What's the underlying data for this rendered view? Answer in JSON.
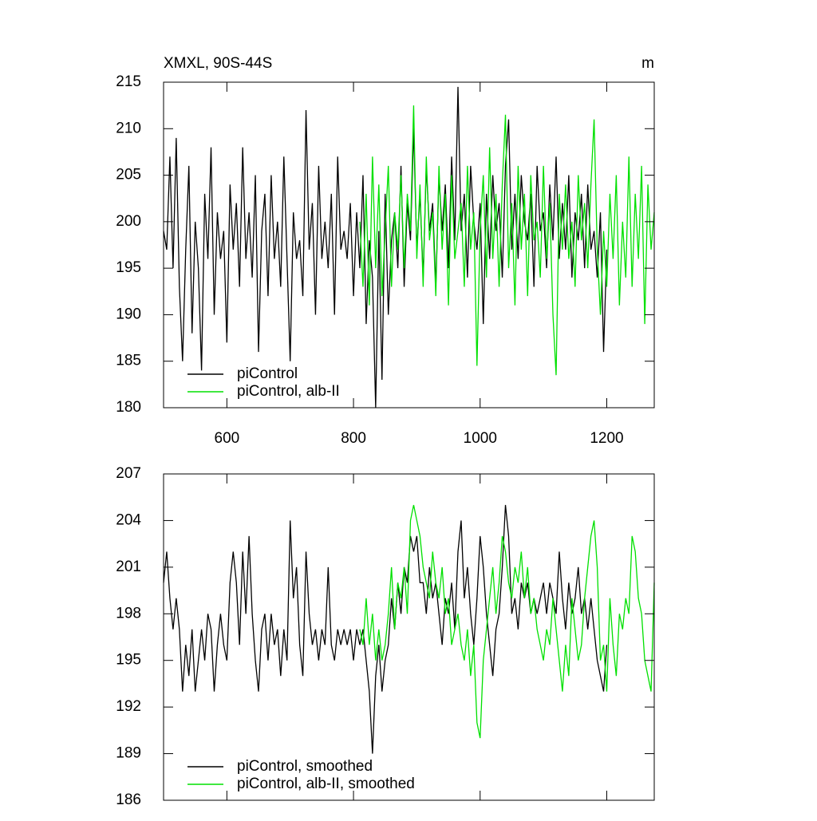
{
  "chart_data": [
    {
      "type": "line",
      "title": "XMXL, 90S-44S",
      "units": "m",
      "xlim": [
        500,
        1275
      ],
      "xticks": [
        600,
        800,
        1000,
        1200
      ],
      "ylim": [
        180,
        215
      ],
      "yticks": [
        180,
        185,
        190,
        195,
        200,
        205,
        210,
        215
      ],
      "legend": "lower left",
      "series": [
        {
          "name": "piControl",
          "color": "#000000",
          "x": [
            500,
            505,
            510,
            515,
            520,
            525,
            530,
            535,
            540,
            545,
            550,
            555,
            560,
            565,
            570,
            575,
            580,
            585,
            590,
            595,
            600,
            605,
            610,
            615,
            620,
            625,
            630,
            635,
            640,
            645,
            650,
            655,
            660,
            665,
            670,
            675,
            680,
            685,
            690,
            695,
            700,
            705,
            710,
            715,
            720,
            725,
            730,
            735,
            740,
            745,
            750,
            755,
            760,
            765,
            770,
            775,
            780,
            785,
            790,
            795,
            800,
            805,
            810,
            815,
            820,
            825,
            830,
            835,
            840,
            845,
            850,
            855,
            860,
            865,
            870,
            875,
            880,
            885,
            890,
            895,
            900,
            905,
            910,
            915,
            920,
            925,
            930,
            935,
            940,
            945,
            950,
            955,
            960,
            965,
            970,
            975,
            980,
            985,
            990,
            995,
            1000,
            1005,
            1010,
            1015,
            1020,
            1025,
            1030,
            1035,
            1040,
            1045,
            1050,
            1055,
            1060,
            1065,
            1070,
            1075,
            1080,
            1085,
            1090,
            1095,
            1100,
            1105,
            1110,
            1115,
            1120,
            1125,
            1130,
            1135,
            1140,
            1145,
            1150,
            1155,
            1160,
            1165,
            1170,
            1175,
            1180,
            1185,
            1190,
            1195,
            1200
          ],
          "values": [
            199,
            197,
            207,
            195,
            209,
            193,
            185,
            197,
            206,
            188,
            200,
            195,
            184,
            203,
            196,
            208,
            190,
            201,
            196,
            199,
            187,
            204,
            197,
            202,
            193,
            208,
            196,
            201,
            194,
            205,
            186,
            199,
            203,
            192,
            205,
            196,
            200,
            193,
            207,
            196,
            185,
            201,
            196,
            198,
            192,
            212,
            197,
            202,
            190,
            206,
            196,
            200,
            195,
            203,
            190,
            207,
            197,
            199,
            196,
            202,
            192,
            201,
            195,
            205,
            189,
            198,
            194,
            180,
            199,
            183,
            203,
            190,
            198,
            201,
            195,
            206,
            193,
            202,
            198,
            210,
            197,
            203,
            194,
            206,
            199,
            202,
            193,
            205,
            199,
            204,
            195,
            207,
            198,
            214.5,
            199,
            203,
            194,
            206,
            200,
            197,
            202,
            189,
            203,
            196,
            205,
            199,
            202,
            194,
            206,
            211,
            197,
            203,
            196,
            205,
            200,
            198,
            203,
            193,
            206,
            199,
            201,
            195,
            204,
            198,
            207,
            196,
            202,
            197,
            205,
            194,
            201,
            198,
            203,
            195,
            204,
            197,
            199,
            194,
            201,
            186,
            197
          ]
        },
        {
          "name": "piControl, alb-II",
          "color": "#00e000",
          "x": [
            810,
            815,
            820,
            825,
            830,
            835,
            840,
            845,
            850,
            855,
            860,
            865,
            870,
            875,
            880,
            885,
            890,
            895,
            900,
            905,
            910,
            915,
            920,
            925,
            930,
            935,
            940,
            945,
            950,
            955,
            960,
            965,
            970,
            975,
            980,
            985,
            990,
            995,
            1000,
            1005,
            1010,
            1015,
            1020,
            1025,
            1030,
            1035,
            1040,
            1045,
            1050,
            1055,
            1060,
            1065,
            1070,
            1075,
            1080,
            1085,
            1090,
            1095,
            1100,
            1105,
            1110,
            1115,
            1120,
            1125,
            1130,
            1135,
            1140,
            1145,
            1150,
            1155,
            1160,
            1165,
            1170,
            1175,
            1180,
            1185,
            1190,
            1195,
            1200,
            1205,
            1210,
            1215,
            1220,
            1225,
            1230,
            1235,
            1240,
            1245,
            1250,
            1255,
            1260,
            1265,
            1270,
            1275
          ],
          "values": [
            200,
            193,
            203,
            191,
            207,
            195,
            204,
            192,
            199,
            206,
            193,
            201,
            197,
            205,
            195,
            203,
            199,
            212.5,
            196,
            204,
            193,
            207,
            198,
            201,
            192,
            206,
            197,
            203,
            191,
            205,
            196,
            199,
            202,
            193,
            206,
            197,
            201,
            184.5,
            199,
            205,
            194,
            208,
            196,
            203,
            193,
            204,
            211.5,
            195,
            202,
            191,
            206,
            197,
            203,
            192,
            205,
            198,
            200,
            194,
            206,
            196,
            202,
            190,
            183.5,
            203,
            197,
            204,
            196,
            200,
            193,
            205,
            198,
            202,
            195,
            204,
            211,
            197,
            190,
            199,
            193,
            203,
            196,
            205,
            191,
            200,
            194,
            207,
            193,
            203,
            196,
            206,
            189,
            204,
            197,
            201
          ]
        }
      ]
    },
    {
      "type": "line",
      "xlim": [
        500,
        1275
      ],
      "xticks": [
        600,
        800,
        1000,
        1200
      ],
      "ylim": [
        186,
        207
      ],
      "yticks": [
        186,
        189,
        192,
        195,
        198,
        201,
        204,
        207
      ],
      "legend": "lower left",
      "series": [
        {
          "name": "piControl, smoothed",
          "color": "#000000",
          "x": [
            500,
            505,
            510,
            515,
            520,
            525,
            530,
            535,
            540,
            545,
            550,
            555,
            560,
            565,
            570,
            575,
            580,
            585,
            590,
            595,
            600,
            605,
            610,
            615,
            620,
            625,
            630,
            635,
            640,
            645,
            650,
            655,
            660,
            665,
            670,
            675,
            680,
            685,
            690,
            695,
            700,
            705,
            710,
            715,
            720,
            725,
            730,
            735,
            740,
            745,
            750,
            755,
            760,
            765,
            770,
            775,
            780,
            785,
            790,
            795,
            800,
            805,
            810,
            815,
            820,
            825,
            830,
            835,
            840,
            845,
            850,
            855,
            860,
            865,
            870,
            875,
            880,
            885,
            890,
            895,
            900,
            905,
            910,
            915,
            920,
            925,
            930,
            935,
            940,
            945,
            950,
            955,
            960,
            965,
            970,
            975,
            980,
            985,
            990,
            995,
            1000,
            1005,
            1010,
            1015,
            1020,
            1025,
            1030,
            1035,
            1040,
            1045,
            1050,
            1055,
            1060,
            1065,
            1070,
            1075,
            1080,
            1085,
            1090,
            1095,
            1100,
            1105,
            1110,
            1115,
            1120,
            1125,
            1130,
            1135,
            1140,
            1145,
            1150,
            1155,
            1160,
            1165,
            1170,
            1175,
            1180,
            1185,
            1190,
            1195,
            1200
          ],
          "values": [
            200,
            202,
            199,
            197,
            199,
            197,
            193,
            196,
            194,
            197,
            193,
            195,
            197,
            195,
            198,
            197,
            193,
            196,
            198,
            196,
            195,
            200,
            202,
            200,
            196,
            202,
            198,
            203,
            198,
            195,
            193,
            197,
            198,
            195,
            198,
            196,
            197,
            194,
            197,
            195,
            204,
            199,
            201,
            196,
            194,
            202,
            198,
            196,
            197,
            195,
            197,
            196,
            201,
            196,
            195,
            197,
            196,
            197,
            196,
            197,
            195,
            197,
            196,
            197,
            195,
            193,
            189,
            194,
            196,
            193,
            195,
            196,
            199,
            197,
            200,
            198,
            201,
            200,
            203,
            202,
            203,
            200,
            200,
            198,
            201,
            199,
            200,
            198,
            196,
            199,
            198,
            200,
            197,
            202,
            204,
            199,
            201,
            198,
            196,
            199,
            203,
            201,
            198,
            196,
            194,
            197,
            198,
            201,
            205,
            203,
            198,
            199,
            197,
            200,
            199,
            200,
            198,
            199,
            198,
            199,
            200,
            198,
            200,
            199,
            198,
            202,
            199,
            197,
            200,
            198,
            199,
            201,
            198,
            199,
            197,
            199,
            197,
            195,
            194,
            193,
            196
          ]
        },
        {
          "name": "piControl, alb-II, smoothed",
          "color": "#00e000",
          "x": [
            810,
            815,
            820,
            825,
            830,
            835,
            840,
            845,
            850,
            855,
            860,
            865,
            870,
            875,
            880,
            885,
            890,
            895,
            900,
            905,
            910,
            915,
            920,
            925,
            930,
            935,
            940,
            945,
            950,
            955,
            960,
            965,
            970,
            975,
            980,
            985,
            990,
            995,
            1000,
            1005,
            1010,
            1015,
            1020,
            1025,
            1030,
            1035,
            1040,
            1045,
            1050,
            1055,
            1060,
            1065,
            1070,
            1075,
            1080,
            1085,
            1090,
            1095,
            1100,
            1105,
            1110,
            1115,
            1120,
            1125,
            1130,
            1135,
            1140,
            1145,
            1150,
            1155,
            1160,
            1165,
            1170,
            1175,
            1180,
            1185,
            1190,
            1195,
            1200,
            1205,
            1210,
            1215,
            1220,
            1225,
            1230,
            1235,
            1240,
            1245,
            1250,
            1255,
            1260,
            1265,
            1270,
            1275
          ],
          "values": [
            197,
            196,
            199,
            196,
            198,
            195,
            197,
            195,
            196,
            198,
            201,
            197,
            200,
            199,
            201,
            198,
            204,
            205,
            204,
            203,
            201,
            200,
            199,
            202,
            200,
            199,
            201,
            198,
            199,
            196,
            197,
            198,
            196,
            195,
            197,
            194,
            196,
            191,
            190,
            195,
            197,
            199,
            201,
            198,
            200,
            203,
            202,
            200,
            199,
            201,
            200,
            202,
            199,
            201,
            198,
            199,
            197,
            196,
            195,
            197,
            196,
            199,
            197,
            195,
            193,
            196,
            194,
            199,
            197,
            195,
            196,
            199,
            201,
            203,
            204,
            201,
            195,
            196,
            193,
            199,
            196,
            194,
            198,
            197,
            199,
            198,
            203,
            202,
            199,
            198,
            195,
            194,
            193,
            200
          ]
        }
      ]
    }
  ]
}
